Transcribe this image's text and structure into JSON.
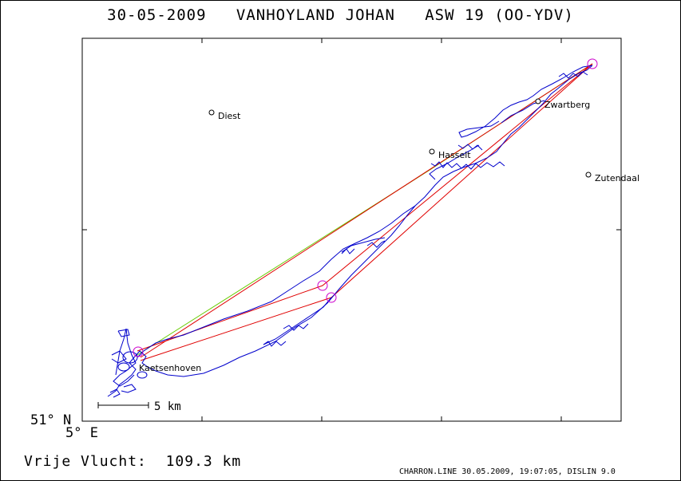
{
  "header": {
    "title": "30-05-2009   VANHOYLAND JOHAN   ASW 19 (OO-YDV)"
  },
  "axes": {
    "lat_label": "51° N",
    "lon_label": "5° E"
  },
  "scale_bar": {
    "label": "5 km"
  },
  "places": [
    {
      "name": "Diest"
    },
    {
      "name": "Hasselt"
    },
    {
      "name": "Zwartberg"
    },
    {
      "name": "Zutendaal"
    },
    {
      "name": "Kaetsenhoven"
    }
  ],
  "colors": {
    "track": "#0000cc",
    "task": "#e00000",
    "declared": "#66cc00",
    "turnpoint": "#cc00cc"
  },
  "footer": {
    "result_label": "Vrije Vlucht:",
    "result_value": "109.3 km",
    "credit": "CHARRON.LINE 30.05.2009, 19:07:05, DISLIN 9.0"
  }
}
